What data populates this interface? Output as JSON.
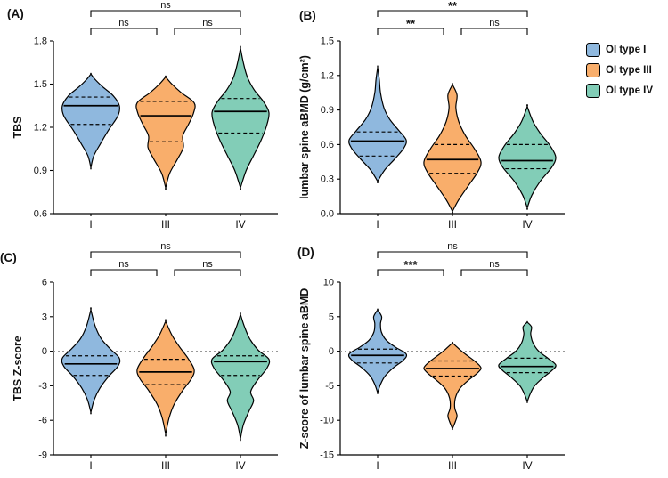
{
  "legend": {
    "items": [
      {
        "label": "OI type I",
        "color": "#8FB8DE"
      },
      {
        "label": "OI type III",
        "color": "#F9AE6B"
      },
      {
        "label": "OI type IV",
        "color": "#82CDB7"
      }
    ]
  },
  "chart_data": [
    {
      "type": "violin",
      "panel": "(A)",
      "ylabel": "TBS",
      "ylim": [
        0.6,
        1.8
      ],
      "yticks": [
        0.6,
        0.9,
        1.2,
        1.5,
        1.8
      ],
      "ytick_labels": [
        "0.6",
        "0.9",
        "1.2",
        "1.5",
        "1.8"
      ],
      "categories": [
        "I",
        "III",
        "IV"
      ],
      "refline": null,
      "violins": [
        {
          "group": "OI type I",
          "color": "#8FB8DE",
          "min": 0.92,
          "max": 1.57,
          "median": 1.35,
          "q1": 1.22,
          "q3": 1.41,
          "shape": [
            [
              0.92,
              0
            ],
            [
              1.0,
              0.1
            ],
            [
              1.08,
              0.32
            ],
            [
              1.18,
              0.62
            ],
            [
              1.28,
              0.95
            ],
            [
              1.35,
              1.0
            ],
            [
              1.42,
              0.78
            ],
            [
              1.48,
              0.42
            ],
            [
              1.53,
              0.16
            ],
            [
              1.57,
              0
            ]
          ]
        },
        {
          "group": "OI type III",
          "color": "#F9AE6B",
          "min": 0.78,
          "max": 1.55,
          "median": 1.28,
          "q1": 1.1,
          "q3": 1.38,
          "shape": [
            [
              0.78,
              0
            ],
            [
              0.88,
              0.14
            ],
            [
              0.98,
              0.42
            ],
            [
              1.06,
              0.62
            ],
            [
              1.14,
              0.6
            ],
            [
              1.22,
              0.8
            ],
            [
              1.3,
              0.98
            ],
            [
              1.37,
              1.0
            ],
            [
              1.44,
              0.55
            ],
            [
              1.5,
              0.22
            ],
            [
              1.55,
              0
            ]
          ]
        },
        {
          "group": "OI type IV",
          "color": "#82CDB7",
          "min": 0.78,
          "max": 1.75,
          "median": 1.31,
          "q1": 1.16,
          "q3": 1.4,
          "shape": [
            [
              0.78,
              0
            ],
            [
              0.9,
              0.2
            ],
            [
              1.0,
              0.45
            ],
            [
              1.1,
              0.7
            ],
            [
              1.2,
              0.9
            ],
            [
              1.3,
              1.0
            ],
            [
              1.38,
              0.8
            ],
            [
              1.46,
              0.48
            ],
            [
              1.55,
              0.24
            ],
            [
              1.65,
              0.1
            ],
            [
              1.75,
              0
            ]
          ]
        }
      ],
      "comparisons": [
        {
          "a": 0,
          "b": 1,
          "label": "ns",
          "row": 0
        },
        {
          "a": 1,
          "b": 2,
          "label": "ns",
          "row": 0
        },
        {
          "a": 0,
          "b": 2,
          "label": "ns",
          "row": 1
        }
      ]
    },
    {
      "type": "violin",
      "panel": "(B)",
      "ylabel": "lumbar spine aBMD (g/cm²)",
      "ylim": [
        0.0,
        1.5
      ],
      "yticks": [
        0.0,
        0.3,
        0.6,
        0.9,
        1.2,
        1.5
      ],
      "ytick_labels": [
        "0.0",
        "0.3",
        "0.6",
        "0.9",
        "1.2",
        "1.5"
      ],
      "categories": [
        "I",
        "III",
        "IV"
      ],
      "refline": null,
      "violins": [
        {
          "group": "OI type I",
          "color": "#8FB8DE",
          "min": 0.28,
          "max": 1.27,
          "median": 0.63,
          "q1": 0.5,
          "q3": 0.71,
          "shape": [
            [
              0.28,
              0
            ],
            [
              0.38,
              0.25
            ],
            [
              0.48,
              0.62
            ],
            [
              0.57,
              0.92
            ],
            [
              0.64,
              1.0
            ],
            [
              0.72,
              0.75
            ],
            [
              0.82,
              0.42
            ],
            [
              0.92,
              0.22
            ],
            [
              1.05,
              0.1
            ],
            [
              1.16,
              0.06
            ],
            [
              1.27,
              0
            ]
          ]
        },
        {
          "group": "OI type III",
          "color": "#F9AE6B",
          "min": 0.02,
          "max": 1.12,
          "median": 0.47,
          "q1": 0.35,
          "q3": 0.6,
          "shape": [
            [
              0.02,
              0
            ],
            [
              0.12,
              0.22
            ],
            [
              0.24,
              0.55
            ],
            [
              0.36,
              0.88
            ],
            [
              0.45,
              1.0
            ],
            [
              0.56,
              0.78
            ],
            [
              0.68,
              0.45
            ],
            [
              0.8,
              0.22
            ],
            [
              0.92,
              0.12
            ],
            [
              1.03,
              0.16
            ],
            [
              1.12,
              0
            ]
          ]
        },
        {
          "group": "OI type IV",
          "color": "#82CDB7",
          "min": 0.05,
          "max": 0.93,
          "median": 0.46,
          "q1": 0.39,
          "q3": 0.6,
          "shape": [
            [
              0.05,
              0
            ],
            [
              0.16,
              0.16
            ],
            [
              0.28,
              0.45
            ],
            [
              0.4,
              0.85
            ],
            [
              0.49,
              1.0
            ],
            [
              0.59,
              0.8
            ],
            [
              0.7,
              0.45
            ],
            [
              0.8,
              0.2
            ],
            [
              0.93,
              0
            ]
          ]
        }
      ],
      "comparisons": [
        {
          "a": 0,
          "b": 1,
          "label": "**",
          "row": 0
        },
        {
          "a": 1,
          "b": 2,
          "label": "ns",
          "row": 0
        },
        {
          "a": 0,
          "b": 2,
          "label": "**",
          "row": 1
        }
      ]
    },
    {
      "type": "violin",
      "panel": "(C)",
      "ylabel": "TBS Z-score",
      "ylim": [
        -9,
        6
      ],
      "yticks": [
        -9,
        -6,
        -3,
        0,
        3,
        6
      ],
      "ytick_labels": [
        "-9",
        "-6",
        "-3",
        "0",
        "3",
        "6"
      ],
      "categories": [
        "I",
        "III",
        "IV"
      ],
      "refline": 0,
      "violins": [
        {
          "group": "OI type I",
          "color": "#8FB8DE",
          "min": -5.3,
          "max": 3.6,
          "median": -1.1,
          "q1": -2.1,
          "q3": -0.4,
          "shape": [
            [
              -5.3,
              0
            ],
            [
              -4.2,
              0.12
            ],
            [
              -3.2,
              0.32
            ],
            [
              -2.2,
              0.62
            ],
            [
              -1.3,
              0.95
            ],
            [
              -0.6,
              1.0
            ],
            [
              0.2,
              0.68
            ],
            [
              1.1,
              0.36
            ],
            [
              2.2,
              0.15
            ],
            [
              3.6,
              0
            ]
          ]
        },
        {
          "group": "OI type III",
          "color": "#F9AE6B",
          "min": -7.2,
          "max": 2.6,
          "median": -1.8,
          "q1": -2.9,
          "q3": -0.7,
          "shape": [
            [
              -7.2,
              0
            ],
            [
              -5.8,
              0.12
            ],
            [
              -4.6,
              0.3
            ],
            [
              -3.4,
              0.6
            ],
            [
              -2.4,
              0.9
            ],
            [
              -1.6,
              1.0
            ],
            [
              -0.6,
              0.78
            ],
            [
              0.4,
              0.48
            ],
            [
              1.4,
              0.22
            ],
            [
              2.6,
              0
            ]
          ]
        },
        {
          "group": "OI type IV",
          "color": "#82CDB7",
          "min": -7.6,
          "max": 3.2,
          "median": -0.9,
          "q1": -2.1,
          "q3": -0.4,
          "shape": [
            [
              -7.6,
              0
            ],
            [
              -6.4,
              0.1
            ],
            [
              -5.2,
              0.3
            ],
            [
              -4.3,
              0.46
            ],
            [
              -3.5,
              0.36
            ],
            [
              -2.5,
              0.6
            ],
            [
              -1.5,
              0.92
            ],
            [
              -0.7,
              1.0
            ],
            [
              0.1,
              0.62
            ],
            [
              1.1,
              0.32
            ],
            [
              2.2,
              0.13
            ],
            [
              3.2,
              0
            ]
          ]
        }
      ],
      "comparisons": [
        {
          "a": 0,
          "b": 1,
          "label": "ns",
          "row": 0
        },
        {
          "a": 1,
          "b": 2,
          "label": "ns",
          "row": 0
        },
        {
          "a": 0,
          "b": 2,
          "label": "ns",
          "row": 1
        }
      ]
    },
    {
      "type": "violin",
      "panel": "(D)",
      "ylabel": "Z-score of lumbar spine aBMD",
      "ylim": [
        -15,
        10
      ],
      "yticks": [
        -15,
        -10,
        -5,
        0,
        5,
        10
      ],
      "ytick_labels": [
        "-15",
        "-10",
        "-5",
        "0",
        "5",
        "10"
      ],
      "categories": [
        "I",
        "III",
        "IV"
      ],
      "refline": 0,
      "violins": [
        {
          "group": "OI type I",
          "color": "#8FB8DE",
          "min": -6.0,
          "max": 6.0,
          "median": -0.6,
          "q1": -1.7,
          "q3": 0.3,
          "shape": [
            [
              -6.0,
              0
            ],
            [
              -4.8,
              0.1
            ],
            [
              -3.6,
              0.26
            ],
            [
              -2.4,
              0.55
            ],
            [
              -1.3,
              0.9
            ],
            [
              -0.4,
              1.0
            ],
            [
              0.6,
              0.62
            ],
            [
              1.6,
              0.3
            ],
            [
              2.8,
              0.13
            ],
            [
              4.0,
              0.1
            ],
            [
              5.0,
              0.14
            ],
            [
              6.0,
              0
            ]
          ]
        },
        {
          "group": "OI type III",
          "color": "#F9AE6B",
          "min": -11.2,
          "max": 1.2,
          "median": -2.5,
          "q1": -3.6,
          "q3": -1.4,
          "shape": [
            [
              -11.2,
              0
            ],
            [
              -10.2,
              0.1
            ],
            [
              -9.3,
              0.16
            ],
            [
              -8.2,
              0.08
            ],
            [
              -6.8,
              0.1
            ],
            [
              -5.4,
              0.26
            ],
            [
              -4.2,
              0.56
            ],
            [
              -3.2,
              0.86
            ],
            [
              -2.4,
              1.0
            ],
            [
              -1.5,
              0.8
            ],
            [
              -0.5,
              0.48
            ],
            [
              0.3,
              0.24
            ],
            [
              1.2,
              0
            ]
          ]
        },
        {
          "group": "OI type IV",
          "color": "#82CDB7",
          "min": -7.3,
          "max": 4.2,
          "median": -2.2,
          "q1": -3.1,
          "q3": -1.0,
          "shape": [
            [
              -7.3,
              0
            ],
            [
              -6.2,
              0.1
            ],
            [
              -5.0,
              0.26
            ],
            [
              -3.8,
              0.56
            ],
            [
              -2.8,
              0.86
            ],
            [
              -2.0,
              1.0
            ],
            [
              -1.0,
              0.72
            ],
            [
              0.0,
              0.4
            ],
            [
              1.2,
              0.2
            ],
            [
              2.5,
              0.12
            ],
            [
              3.5,
              0.15
            ],
            [
              4.2,
              0
            ]
          ]
        }
      ],
      "comparisons": [
        {
          "a": 0,
          "b": 1,
          "label": "***",
          "row": 0
        },
        {
          "a": 1,
          "b": 2,
          "label": "ns",
          "row": 0
        },
        {
          "a": 0,
          "b": 2,
          "label": "ns",
          "row": 1
        }
      ]
    }
  ]
}
